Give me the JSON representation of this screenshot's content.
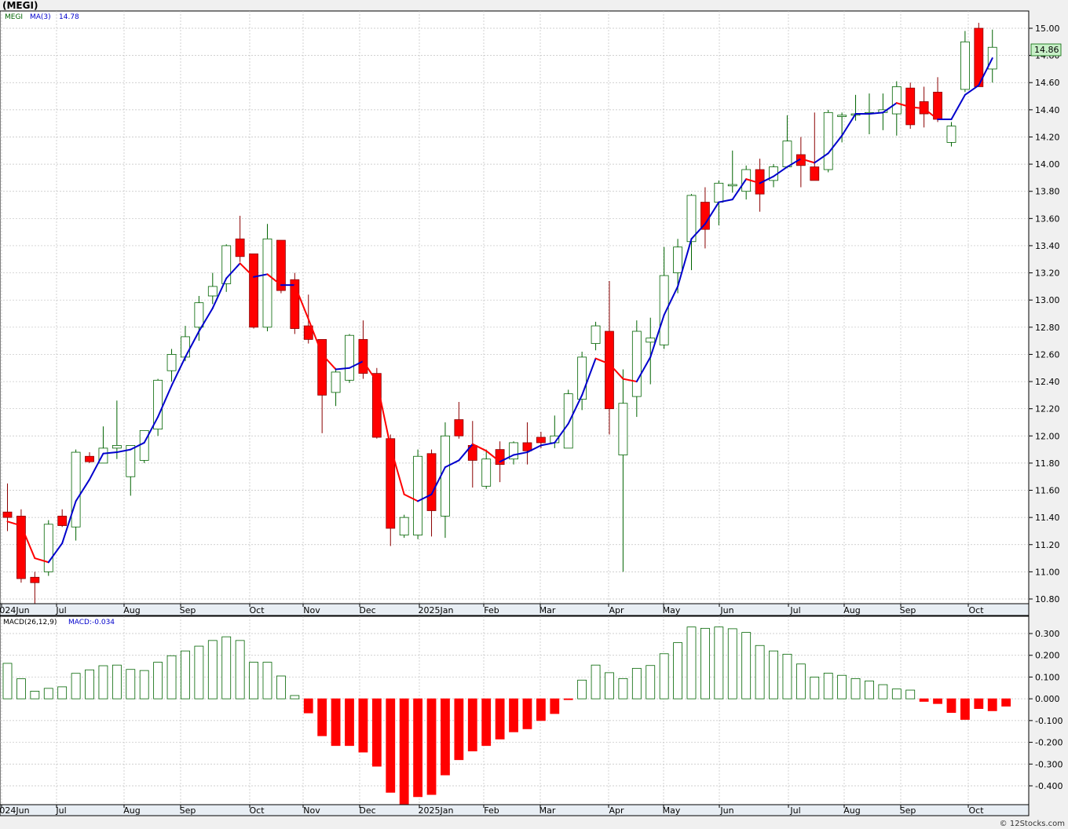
{
  "title": "(MEGI)",
  "footer": "© 12Stocks.com",
  "colors": {
    "up": "#ffffff",
    "up_edge": "#006400",
    "down": "#ff0000",
    "down_edge": "#8b0000",
    "ma_up": "#0000cc",
    "ma_down": "#ff0000",
    "macd_pos": "#006400",
    "macd_neg": "#ff0000",
    "last_price_bg": "#c8f0c8"
  },
  "price_panel": {
    "legend_symbol": "MEGI",
    "legend_ma": "MA(3)",
    "legend_ma_value": "14.78",
    "last_price": "14.86",
    "yticks": [
      "15.00",
      "14.80",
      "14.60",
      "14.40",
      "14.20",
      "14.00",
      "13.80",
      "13.60",
      "13.40",
      "13.20",
      "13.00",
      "12.80",
      "12.60",
      "12.40",
      "12.20",
      "12.00",
      "11.80",
      "11.60",
      "11.40",
      "11.20",
      "11.00",
      "10.80"
    ]
  },
  "macd_panel": {
    "legend_name": "MACD(26,12,9)",
    "legend_value": "MACD:-0.034",
    "yticks": [
      "0.300",
      "0.200",
      "0.100",
      "0.000",
      "-0.100",
      "-0.200",
      "-0.300",
      "-0.400"
    ]
  },
  "x_labels": [
    "2024Jun",
    "Jul",
    "Aug",
    "Sep",
    "Oct",
    "Nov",
    "Dec",
    "2025Jan",
    "Feb",
    "Mar",
    "Apr",
    "May",
    "Jun",
    "Jul",
    "Aug",
    "Sep",
    "Oct"
  ],
  "chart_data": [
    {
      "type": "candlestick",
      "title": "(MEGI)",
      "interval": "weekly",
      "ylim": [
        10.75,
        15.1
      ],
      "candles": [
        {
          "o": 11.44,
          "h": 11.65,
          "l": 11.3,
          "c": 11.4
        },
        {
          "o": 11.41,
          "h": 11.46,
          "l": 10.92,
          "c": 10.95
        },
        {
          "o": 10.96,
          "h": 11.0,
          "l": 10.75,
          "c": 10.92
        },
        {
          "o": 11.0,
          "h": 11.38,
          "l": 10.97,
          "c": 11.35
        },
        {
          "o": 11.41,
          "h": 11.46,
          "l": 11.33,
          "c": 11.34
        },
        {
          "o": 11.33,
          "h": 11.9,
          "l": 11.23,
          "c": 11.88
        },
        {
          "o": 11.85,
          "h": 11.88,
          "l": 11.8,
          "c": 11.81
        },
        {
          "o": 11.8,
          "h": 12.07,
          "l": 11.8,
          "c": 11.91
        },
        {
          "o": 11.91,
          "h": 12.26,
          "l": 11.83,
          "c": 11.93
        },
        {
          "o": 11.7,
          "h": 11.93,
          "l": 11.56,
          "c": 11.93
        },
        {
          "o": 11.82,
          "h": 12.04,
          "l": 11.8,
          "c": 12.04
        },
        {
          "o": 12.05,
          "h": 12.42,
          "l": 12.0,
          "c": 12.41
        },
        {
          "o": 12.48,
          "h": 12.64,
          "l": 12.4,
          "c": 12.6
        },
        {
          "o": 12.58,
          "h": 12.81,
          "l": 12.55,
          "c": 12.73
        },
        {
          "o": 12.8,
          "h": 13.03,
          "l": 12.7,
          "c": 12.98
        },
        {
          "o": 13.03,
          "h": 13.2,
          "l": 12.97,
          "c": 13.1
        },
        {
          "o": 13.12,
          "h": 13.41,
          "l": 13.06,
          "c": 13.4
        },
        {
          "o": 13.45,
          "h": 13.62,
          "l": 13.28,
          "c": 13.32
        },
        {
          "o": 13.34,
          "h": 13.34,
          "l": 12.79,
          "c": 12.8
        },
        {
          "o": 12.8,
          "h": 13.56,
          "l": 12.77,
          "c": 13.45
        },
        {
          "o": 13.44,
          "h": 13.44,
          "l": 13.05,
          "c": 13.07
        },
        {
          "o": 13.15,
          "h": 13.2,
          "l": 12.75,
          "c": 12.79
        },
        {
          "o": 12.81,
          "h": 13.04,
          "l": 12.68,
          "c": 12.71
        },
        {
          "o": 12.71,
          "h": 12.71,
          "l": 12.02,
          "c": 12.3
        },
        {
          "o": 12.32,
          "h": 12.5,
          "l": 12.22,
          "c": 12.47
        },
        {
          "o": 12.41,
          "h": 12.75,
          "l": 12.39,
          "c": 12.74
        },
        {
          "o": 12.71,
          "h": 12.85,
          "l": 12.42,
          "c": 12.46
        },
        {
          "o": 12.46,
          "h": 12.5,
          "l": 11.98,
          "c": 11.99
        },
        {
          "o": 11.98,
          "h": 12.01,
          "l": 11.19,
          "c": 11.32
        },
        {
          "o": 11.27,
          "h": 11.42,
          "l": 11.25,
          "c": 11.4
        },
        {
          "o": 11.27,
          "h": 11.9,
          "l": 11.24,
          "c": 11.85
        },
        {
          "o": 11.87,
          "h": 11.9,
          "l": 11.26,
          "c": 11.45
        },
        {
          "o": 11.41,
          "h": 12.1,
          "l": 11.25,
          "c": 12.0
        },
        {
          "o": 12.12,
          "h": 12.25,
          "l": 11.98,
          "c": 12.0
        },
        {
          "o": 11.93,
          "h": 12.11,
          "l": 11.62,
          "c": 11.82
        },
        {
          "o": 11.63,
          "h": 11.9,
          "l": 11.61,
          "c": 11.83
        },
        {
          "o": 11.9,
          "h": 11.96,
          "l": 11.66,
          "c": 11.79
        },
        {
          "o": 11.83,
          "h": 11.96,
          "l": 11.79,
          "c": 11.95
        },
        {
          "o": 11.95,
          "h": 12.1,
          "l": 11.79,
          "c": 11.89
        },
        {
          "o": 11.99,
          "h": 12.03,
          "l": 11.91,
          "c": 11.95
        },
        {
          "o": 11.95,
          "h": 12.15,
          "l": 11.91,
          "c": 12.0
        },
        {
          "o": 11.91,
          "h": 12.34,
          "l": 11.91,
          "c": 12.31
        },
        {
          "o": 12.27,
          "h": 12.62,
          "l": 12.19,
          "c": 12.58
        },
        {
          "o": 12.68,
          "h": 12.84,
          "l": 12.63,
          "c": 12.81
        },
        {
          "o": 12.77,
          "h": 13.14,
          "l": 12.01,
          "c": 12.2
        },
        {
          "o": 11.86,
          "h": 12.49,
          "l": 11.0,
          "c": 12.24
        },
        {
          "o": 12.29,
          "h": 12.85,
          "l": 12.14,
          "c": 12.77
        },
        {
          "o": 12.69,
          "h": 12.87,
          "l": 12.38,
          "c": 12.72
        },
        {
          "o": 12.67,
          "h": 13.39,
          "l": 12.64,
          "c": 13.18
        },
        {
          "o": 13.2,
          "h": 13.45,
          "l": 13.05,
          "c": 13.39
        },
        {
          "o": 13.43,
          "h": 13.78,
          "l": 13.22,
          "c": 13.77
        },
        {
          "o": 13.72,
          "h": 13.83,
          "l": 13.38,
          "c": 13.52
        },
        {
          "o": 13.72,
          "h": 13.88,
          "l": 13.55,
          "c": 13.86
        },
        {
          "o": 13.84,
          "h": 14.1,
          "l": 13.79,
          "c": 13.85
        },
        {
          "o": 13.8,
          "h": 13.99,
          "l": 13.74,
          "c": 13.96
        },
        {
          "o": 13.96,
          "h": 14.04,
          "l": 13.65,
          "c": 13.78
        },
        {
          "o": 13.88,
          "h": 14.0,
          "l": 13.83,
          "c": 13.98
        },
        {
          "o": 13.98,
          "h": 14.36,
          "l": 13.97,
          "c": 14.17
        },
        {
          "o": 14.07,
          "h": 14.2,
          "l": 13.83,
          "c": 13.99
        },
        {
          "o": 13.98,
          "h": 14.38,
          "l": 13.88,
          "c": 13.88
        },
        {
          "o": 13.96,
          "h": 14.4,
          "l": 13.94,
          "c": 14.38
        },
        {
          "o": 14.35,
          "h": 14.38,
          "l": 14.16,
          "c": 14.36
        },
        {
          "o": 14.36,
          "h": 14.51,
          "l": 14.32,
          "c": 14.37
        },
        {
          "o": 14.37,
          "h": 14.52,
          "l": 14.22,
          "c": 14.38
        },
        {
          "o": 14.38,
          "h": 14.52,
          "l": 14.25,
          "c": 14.4
        },
        {
          "o": 14.37,
          "h": 14.61,
          "l": 14.21,
          "c": 14.57
        },
        {
          "o": 14.56,
          "h": 14.6,
          "l": 14.26,
          "c": 14.29
        },
        {
          "o": 14.46,
          "h": 14.57,
          "l": 14.27,
          "c": 14.37
        },
        {
          "o": 14.53,
          "h": 14.64,
          "l": 14.31,
          "c": 14.33
        },
        {
          "o": 14.16,
          "h": 14.31,
          "l": 14.13,
          "c": 14.28
        },
        {
          "o": 14.55,
          "h": 14.98,
          "l": 14.53,
          "c": 14.9
        },
        {
          "o": 15.0,
          "h": 15.04,
          "l": 14.57,
          "c": 14.57
        },
        {
          "o": 14.7,
          "h": 14.99,
          "l": 14.6,
          "c": 14.86
        }
      ],
      "ma3": [
        11.37,
        11.34,
        11.1,
        11.07,
        11.21,
        11.52,
        11.68,
        11.87,
        11.88,
        11.9,
        11.95,
        12.14,
        12.37,
        12.58,
        12.77,
        12.94,
        13.16,
        13.27,
        13.17,
        13.19,
        13.11,
        13.11,
        12.86,
        12.6,
        12.49,
        12.5,
        12.55,
        12.4,
        11.92,
        11.57,
        11.52,
        11.57,
        11.77,
        11.82,
        11.94,
        11.89,
        11.81,
        11.86,
        11.88,
        11.93,
        11.95,
        12.09,
        12.3,
        12.57,
        12.53,
        12.42,
        12.4,
        12.58,
        12.89,
        13.1,
        13.45,
        13.56,
        13.72,
        13.74,
        13.89,
        13.86,
        13.91,
        13.98,
        14.04,
        14.01,
        14.08,
        14.21,
        14.37,
        14.37,
        14.38,
        14.45,
        14.42,
        14.41,
        14.33,
        14.33,
        14.51,
        14.58,
        14.78
      ]
    },
    {
      "type": "bar",
      "title": "MACD(26,12,9)",
      "ylim": [
        -0.49,
        0.36
      ],
      "values": [
        0.163,
        0.092,
        0.035,
        0.048,
        0.055,
        0.117,
        0.133,
        0.152,
        0.155,
        0.135,
        0.13,
        0.168,
        0.198,
        0.22,
        0.242,
        0.268,
        0.285,
        0.268,
        0.168,
        0.168,
        0.105,
        0.015,
        -0.065,
        -0.17,
        -0.215,
        -0.215,
        -0.245,
        -0.31,
        -0.43,
        -0.49,
        -0.45,
        -0.44,
        -0.35,
        -0.28,
        -0.24,
        -0.215,
        -0.185,
        -0.152,
        -0.138,
        -0.1,
        -0.068,
        -0.004,
        0.086,
        0.155,
        0.12,
        0.093,
        0.14,
        0.153,
        0.207,
        0.258,
        0.33,
        0.324,
        0.33,
        0.322,
        0.305,
        0.245,
        0.22,
        0.205,
        0.16,
        0.1,
        0.118,
        0.108,
        0.093,
        0.082,
        0.065,
        0.045,
        0.04,
        -0.012,
        -0.022,
        -0.063,
        -0.095,
        -0.045,
        -0.055,
        -0.034
      ]
    }
  ]
}
